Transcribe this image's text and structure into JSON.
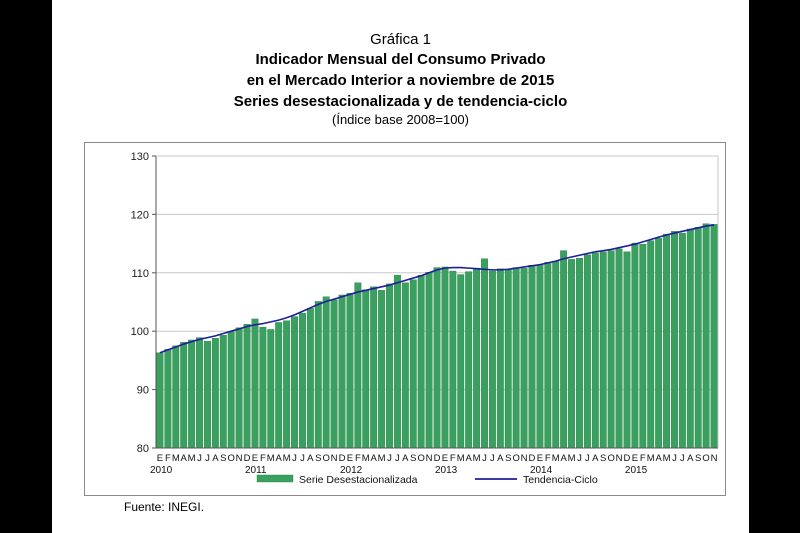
{
  "heading": {
    "chart_label": "Gráfica 1",
    "title_lines": [
      "Indicador Mensual del Consumo Privado",
      "en el Mercado Interior a noviembre de 2015",
      "Series desestacionalizada y de tendencia-ciclo"
    ],
    "subtitle": "(Índice base 2008=100)"
  },
  "source": "Fuente: INEGI.",
  "colors": {
    "bar": "#3aa05f",
    "bar_edge": "#2a8049",
    "trend": "#1f1d9c",
    "grid": "#c8c8c8",
    "axis": "#555555"
  },
  "chart_data": {
    "type": "bar",
    "ylim": [
      80,
      130
    ],
    "yticks": [
      80,
      90,
      100,
      110,
      120,
      130
    ],
    "month_letters": [
      "E",
      "F",
      "M",
      "A",
      "M",
      "J",
      "J",
      "A",
      "S",
      "O",
      "N",
      "D"
    ],
    "start_year": 2010,
    "years": [
      "2010",
      "2011",
      "2012",
      "2013",
      "2014",
      "2015"
    ],
    "legend_position": "bottom",
    "series": [
      {
        "name": "Serie Desestacionalizada",
        "kind": "bar",
        "values": [
          96.3,
          96.9,
          97.5,
          98.1,
          98.5,
          98.9,
          98.3,
          98.8,
          99.3,
          99.9,
          100.6,
          101.2,
          102.1,
          100.7,
          100.3,
          101.5,
          101.8,
          102.5,
          103.1,
          103.9,
          105.1,
          105.9,
          105.4,
          106.2,
          106.5,
          108.3,
          107.1,
          107.6,
          107.0,
          108.1,
          109.6,
          108.3,
          108.8,
          109.6,
          110.1,
          110.9,
          111.0,
          110.3,
          109.7,
          110.2,
          110.8,
          112.4,
          110.3,
          110.7,
          110.6,
          110.9,
          110.8,
          111.3,
          111.4,
          111.8,
          112.0,
          113.8,
          112.3,
          112.5,
          113.1,
          113.4,
          113.6,
          113.8,
          114.1,
          113.6,
          115.1,
          114.9,
          115.5,
          115.9,
          116.6,
          117.1,
          116.8,
          117.5,
          117.8,
          118.4,
          118.3
        ]
      },
      {
        "name": "Tendencia-Ciclo",
        "kind": "line",
        "values": [
          96.3,
          96.8,
          97.3,
          97.8,
          98.2,
          98.6,
          98.9,
          99.2,
          99.6,
          100.0,
          100.4,
          100.8,
          101.1,
          101.3,
          101.6,
          101.9,
          102.3,
          102.8,
          103.4,
          104.0,
          104.6,
          105.1,
          105.5,
          105.9,
          106.3,
          106.7,
          107.0,
          107.3,
          107.6,
          107.9,
          108.3,
          108.7,
          109.1,
          109.5,
          110.0,
          110.5,
          110.8,
          110.9,
          110.9,
          110.8,
          110.7,
          110.6,
          110.5,
          110.5,
          110.6,
          110.8,
          111.0,
          111.2,
          111.4,
          111.7,
          112.0,
          112.4,
          112.7,
          113.0,
          113.3,
          113.6,
          113.8,
          114.0,
          114.3,
          114.6,
          114.9,
          115.3,
          115.7,
          116.1,
          116.5,
          116.8,
          117.1,
          117.4,
          117.7,
          118.0,
          118.2
        ]
      }
    ]
  }
}
